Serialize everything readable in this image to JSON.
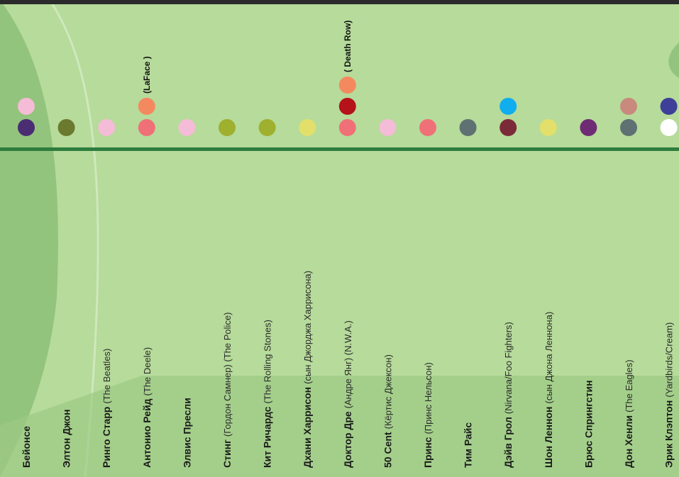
{
  "columns": [
    {
      "name": "Бейонсе",
      "dots": [
        "#f4bcd6",
        "#4b2d73"
      ]
    },
    {
      "name": "Элтон Джон",
      "dots": [
        "#6b7a2e"
      ]
    },
    {
      "name": "Ринго Старр",
      "sub": "(The Beatles)",
      "dots": [
        "#f4bcd6"
      ]
    },
    {
      "name": "Антонио Рейд",
      "sub": "(The Deele)",
      "label": "(LaFace )",
      "dots": [
        "#f4895f",
        "#f07078"
      ]
    },
    {
      "name": "Элвис Пресли",
      "dots": [
        "#f4bcd6"
      ]
    },
    {
      "name": "Стинг",
      "sub": "(Гордон Самнер) (The Police)",
      "dots": [
        "#9fb02e"
      ]
    },
    {
      "name": "Кит Ричардс",
      "sub": "(The Rolling Stones)",
      "dots": [
        "#9fb02e"
      ]
    },
    {
      "name": "Дхани Харрисон",
      "sub": "(сын Джорджа Харрисона)",
      "dots": [
        "#e2e06b"
      ]
    },
    {
      "name": "Доктор Дре",
      "sub": "(Андре Янг) (N.W.A.)",
      "label": "( Death Row)",
      "dots": [
        "#f4895f",
        "#b5121b",
        "#f07078"
      ]
    },
    {
      "name": "50 Cent",
      "sub": "(Кёртис Джексон)",
      "dots": [
        "#f4bcd6"
      ]
    },
    {
      "name": "Принс",
      "sub": "(Принс Нельсон)",
      "dots": [
        "#f07078"
      ]
    },
    {
      "name": "Тим Райс",
      "dots": [
        "#5f7173"
      ]
    },
    {
      "name": "Дэйв Грол",
      "sub": "(Nirvana/Foo Fighters)",
      "dots": [
        "#10aeef",
        "#7b2b38"
      ]
    },
    {
      "name": "Шон Леннон",
      "sub": "(сын Джона Леннона)",
      "dots": [
        "#e2e06b"
      ]
    },
    {
      "name": "Брюс Спрингстин",
      "dots": [
        "#6f2c75"
      ]
    },
    {
      "name": "Дон Хенли",
      "sub": "(The Eagles)",
      "dots": [
        "#c98a7d",
        "#5f7173"
      ]
    },
    {
      "name": "Эрик Клэптон",
      "sub": "(Yardbirds/Cream)",
      "dots": [
        "#3e3f99",
        "#ffffff"
      ]
    }
  ]
}
